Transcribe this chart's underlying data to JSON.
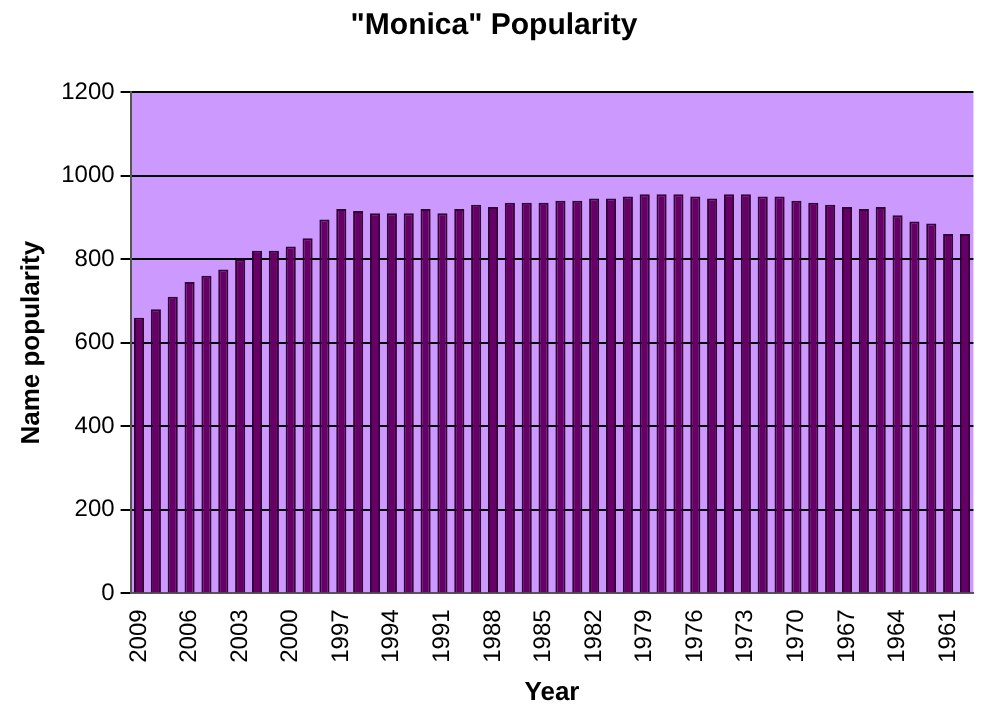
{
  "chart_data": {
    "type": "bar",
    "title": "\"Monica\" Popularity",
    "xlabel": "Year",
    "ylabel": "Name popularity",
    "categories": [
      "2009",
      null,
      null,
      "2006",
      null,
      null,
      "2003",
      null,
      null,
      "2000",
      null,
      null,
      "1997",
      null,
      null,
      "1994",
      null,
      null,
      "1991",
      null,
      null,
      "1988",
      null,
      null,
      "1985",
      null,
      null,
      "1982",
      null,
      null,
      "1979",
      null,
      null,
      "1976",
      null,
      null,
      "1973",
      null,
      null,
      "1970",
      null,
      null,
      "1967",
      null,
      null,
      "1964",
      null,
      null,
      "1961",
      null
    ],
    "values": [
      660,
      680,
      710,
      745,
      760,
      775,
      800,
      820,
      820,
      830,
      850,
      895,
      920,
      915,
      910,
      910,
      910,
      920,
      910,
      920,
      930,
      925,
      935,
      935,
      935,
      940,
      940,
      945,
      945,
      950,
      955,
      955,
      955,
      950,
      945,
      955,
      955,
      950,
      950,
      940,
      935,
      930,
      925,
      920,
      925,
      905,
      890,
      885,
      860,
      860
    ],
    "color": "#660066",
    "ylim": [
      0,
      1200
    ],
    "yticks": [
      0,
      200,
      400,
      600,
      800,
      1000,
      1200
    ],
    "grid": "y"
  }
}
